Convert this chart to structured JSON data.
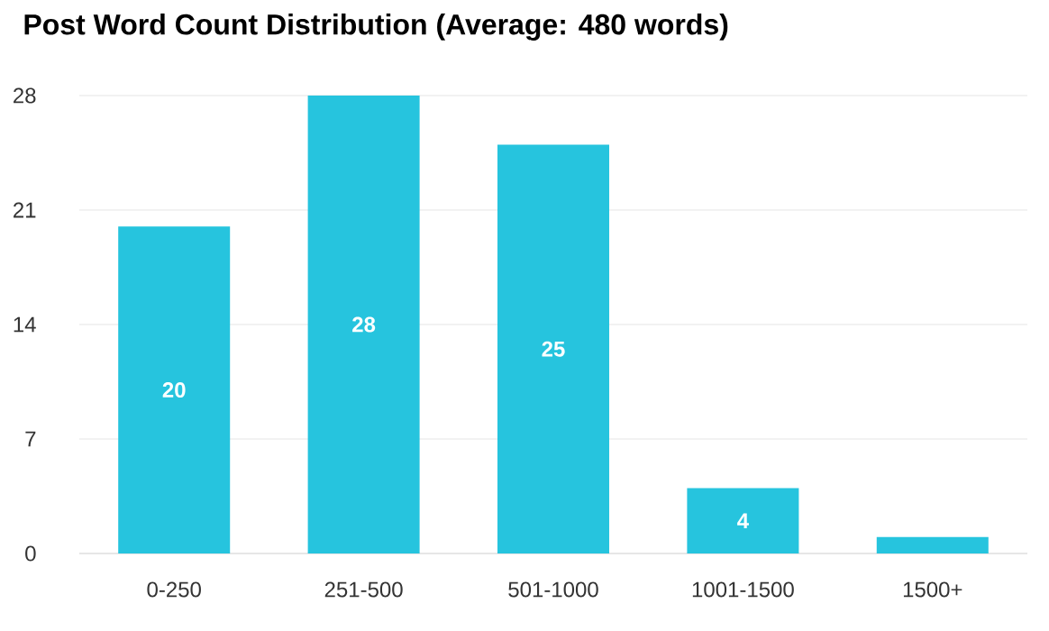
{
  "chart_data": {
    "type": "bar",
    "title": "Post Word Count Distribution (Average: 480 words)",
    "categories": [
      "0-250",
      "251-500",
      "501-1000",
      "1001-1500",
      "1500+"
    ],
    "values": [
      20,
      28,
      25,
      4,
      1
    ],
    "value_labels": [
      "20",
      "28",
      "25",
      "4",
      null
    ],
    "color": "#26c4de",
    "ylim": [
      0,
      28
    ],
    "yticks": [
      0,
      7,
      14,
      21,
      28
    ],
    "grid": "y"
  }
}
